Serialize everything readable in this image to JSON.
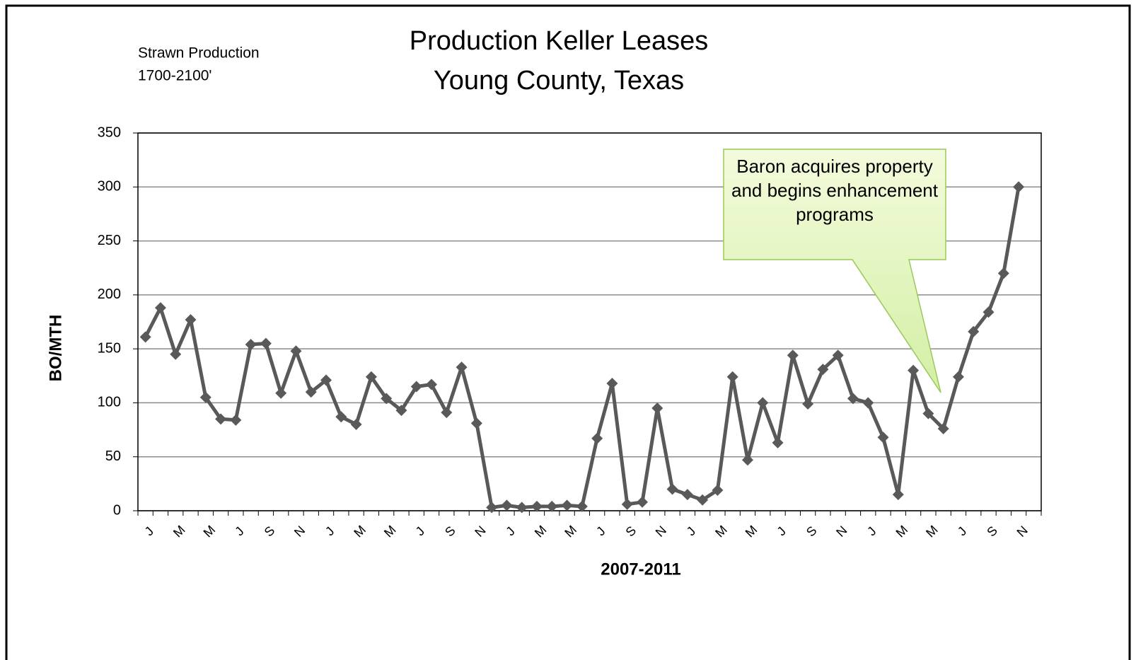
{
  "chart_data": {
    "type": "line",
    "title": "Production Keller Leases",
    "subtitle": "Young County, Texas",
    "note": [
      "Strawn Production",
      "1700-2100'"
    ],
    "annotation": "Baron acquires property and begins enhancement programs",
    "x_label": "2007-2011",
    "y_label": "BO/MTH",
    "categories": [
      "J",
      null,
      "M",
      null,
      "M",
      null,
      "J",
      null,
      "S",
      null,
      "N",
      null,
      "J",
      null,
      "M",
      null,
      "M",
      null,
      "J",
      null,
      "S",
      null,
      "N",
      null,
      "J",
      null,
      "M",
      null,
      "M",
      null,
      "J",
      null,
      "S",
      null,
      "N",
      null,
      "J",
      null,
      "M",
      null,
      "M",
      null,
      "J",
      null,
      "S",
      null,
      "N",
      null,
      "J",
      null,
      "M",
      null,
      "M",
      null,
      "J",
      null,
      "S",
      null,
      "N",
      null
    ],
    "series": [
      {
        "name": "BO/MTH",
        "color": "#595959",
        "values": [
          161,
          188,
          145,
          177,
          105,
          85,
          84,
          154,
          155,
          109,
          148,
          110,
          121,
          87,
          80,
          124,
          104,
          93,
          115,
          117,
          91,
          133,
          81,
          3,
          5,
          3,
          4,
          4,
          5,
          4,
          67,
          118,
          6,
          8,
          95,
          20,
          15,
          10,
          19,
          124,
          47,
          100,
          63,
          144,
          99,
          131,
          144,
          104,
          100,
          68,
          15,
          130,
          90,
          76,
          124,
          166,
          184,
          220,
          300,
          null
        ]
      }
    ],
    "ylim": [
      0,
      350
    ],
    "yticks": [
      0,
      50,
      100,
      150,
      200,
      250,
      300,
      350
    ],
    "grid": true
  }
}
